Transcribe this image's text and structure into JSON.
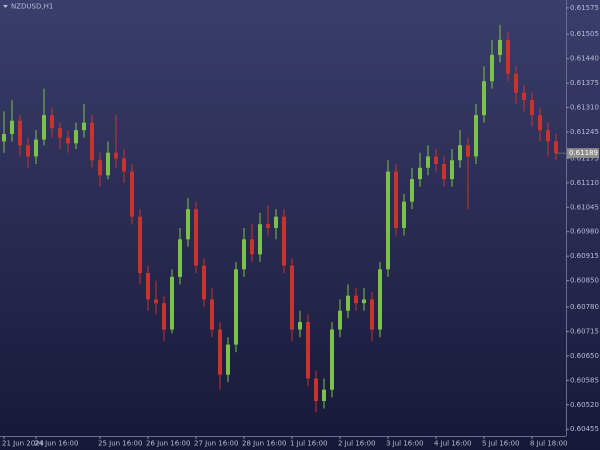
{
  "chart_data": {
    "type": "candlestick",
    "title": "NZDUSD,H1",
    "bull_color": "#7cc24a",
    "bear_color": "#c8342c",
    "ylim": [
      0.60437,
      0.61596
    ],
    "yticks": [
      0.61575,
      0.61505,
      {
        "value": 0.6144,
        "label": "0.61440"
      },
      0.61375,
      {
        "value": 0.6131,
        "label": "0.61310"
      },
      0.61245,
      0.61175,
      {
        "value": 0.6111,
        "label": "0.61110"
      },
      0.61045,
      {
        "value": 0.6098,
        "label": "0.60980"
      },
      0.60915,
      {
        "value": 0.6085,
        "label": "0.60850"
      },
      {
        "value": 0.6078,
        "label": "0.60780"
      },
      0.60715,
      {
        "value": 0.6065,
        "label": "0.60650"
      },
      0.60585,
      {
        "value": 0.6052,
        "label": "0.60520"
      },
      0.60455
    ],
    "xticks": [
      {
        "value": 0,
        "label": "21 Jun 2024"
      },
      {
        "value": 4,
        "label": "24 Jun 16:00"
      },
      {
        "value": 12,
        "label": "25 Jun 16:00"
      },
      {
        "value": 18,
        "label": "26 Jun 16:00"
      },
      {
        "value": 24,
        "label": "27 Jun 16:00"
      },
      {
        "value": 30,
        "label": "28 Jun 16:00"
      },
      {
        "value": 36,
        "label": "1 Jul 16:00"
      },
      {
        "value": 42,
        "label": "2 Jul 16:00"
      },
      {
        "value": 48,
        "label": "3 Jul 16:00"
      },
      {
        "value": 54,
        "label": "4 Jul 16:00"
      },
      {
        "value": 60,
        "label": "5 Jul 16:00"
      },
      {
        "value": 66,
        "label": "8 Jul 18:00"
      }
    ],
    "series": {
      "open": [
        0.6122,
        0.6124,
        0.61275,
        0.6121,
        0.6118,
        0.61225,
        0.6129,
        0.61255,
        0.6123,
        0.61215,
        0.6125,
        0.6127,
        0.6117,
        0.6113,
        0.6119,
        0.61175,
        0.6114,
        0.6102,
        0.6087,
        0.608,
        0.6079,
        0.6072,
        0.6086,
        0.6096,
        0.6104,
        0.6089,
        0.608,
        0.6072,
        0.606,
        0.6068,
        0.6088,
        0.6096,
        0.6092,
        0.61,
        0.6099,
        0.6102,
        0.6089,
        0.6072,
        0.6074,
        0.6059,
        0.6053,
        0.6056,
        0.6072,
        0.6077,
        0.6081,
        0.6079,
        0.608,
        0.6072,
        0.6088,
        0.6114,
        0.6099,
        0.6106,
        0.6112,
        0.6115,
        0.6118,
        0.6116,
        0.6112,
        0.6117,
        0.6121,
        0.6118,
        0.6129,
        0.6138,
        0.6145,
        0.6149,
        0.614,
        0.6135,
        0.6133,
        0.6129,
        0.6125,
        0.6122
      ],
      "high": [
        0.613,
        0.6133,
        0.6129,
        0.6123,
        0.6125,
        0.6136,
        0.6131,
        0.6127,
        0.6125,
        0.6127,
        0.6132,
        0.6129,
        0.6119,
        0.6122,
        0.6129,
        0.612,
        0.6116,
        0.6104,
        0.6089,
        0.6085,
        0.6081,
        0.6088,
        0.6099,
        0.6107,
        0.6106,
        0.6091,
        0.6083,
        0.6074,
        0.607,
        0.609,
        0.6099,
        0.61,
        0.6103,
        0.6105,
        0.6104,
        0.6104,
        0.6091,
        0.6077,
        0.6076,
        0.6061,
        0.6059,
        0.6074,
        0.608,
        0.6084,
        0.6083,
        0.6083,
        0.6082,
        0.609,
        0.6117,
        0.6116,
        0.6108,
        0.6115,
        0.6119,
        0.6121,
        0.612,
        0.6118,
        0.612,
        0.6125,
        0.6123,
        0.6132,
        0.6142,
        0.6149,
        0.6153,
        0.6151,
        0.6142,
        0.6137,
        0.6135,
        0.6131,
        0.6127,
        0.6124
      ],
      "low": [
        0.6119,
        0.6122,
        0.6118,
        0.6115,
        0.6116,
        0.6121,
        0.6123,
        0.612,
        0.6119,
        0.612,
        0.6123,
        0.6115,
        0.611,
        0.6112,
        0.6115,
        0.6111,
        0.61,
        0.6084,
        0.6077,
        0.6076,
        0.6069,
        0.6071,
        0.6084,
        0.6094,
        0.6087,
        0.6078,
        0.607,
        0.6056,
        0.6058,
        0.6066,
        0.6086,
        0.609,
        0.609,
        0.6097,
        0.6096,
        0.6087,
        0.6069,
        0.607,
        0.6057,
        0.605,
        0.6051,
        0.6054,
        0.607,
        0.6075,
        0.6077,
        0.6077,
        0.6069,
        0.607,
        0.6086,
        0.6097,
        0.6097,
        0.6104,
        0.611,
        0.6113,
        0.6114,
        0.611,
        0.611,
        0.6115,
        0.6104,
        0.6116,
        0.6127,
        0.6136,
        0.6143,
        0.6138,
        0.6132,
        0.613,
        0.6126,
        0.6122,
        0.6118,
        0.6117
      ],
      "close": [
        0.6124,
        0.61275,
        0.6121,
        0.6118,
        0.61225,
        0.6129,
        0.61255,
        0.6123,
        0.61215,
        0.6125,
        0.6127,
        0.6117,
        0.6113,
        0.6119,
        0.61175,
        0.6114,
        0.6102,
        0.6087,
        0.608,
        0.6079,
        0.6072,
        0.6086,
        0.6096,
        0.6104,
        0.6089,
        0.608,
        0.6072,
        0.606,
        0.6068,
        0.6088,
        0.6096,
        0.6092,
        0.61,
        0.6099,
        0.6102,
        0.6089,
        0.6072,
        0.6074,
        0.6059,
        0.6053,
        0.6056,
        0.6072,
        0.6077,
        0.6081,
        0.6079,
        0.608,
        0.6072,
        0.6088,
        0.6114,
        0.6099,
        0.6106,
        0.6112,
        0.6115,
        0.6118,
        0.6116,
        0.6112,
        0.6117,
        0.6121,
        0.6118,
        0.6129,
        0.6138,
        0.6145,
        0.6149,
        0.614,
        0.6135,
        0.6133,
        0.6129,
        0.6125,
        0.6122,
        0.61189
      ]
    }
  }
}
